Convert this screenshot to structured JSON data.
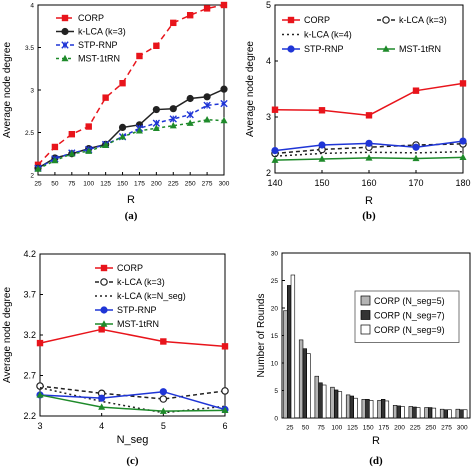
{
  "chart_data": [
    {
      "panel": "(a)",
      "type": "line",
      "xlabel": "R",
      "ylabel": "Average node degree",
      "xlim": [
        25,
        300
      ],
      "ylim": [
        2,
        4
      ],
      "xticks": [
        25,
        50,
        75,
        100,
        125,
        150,
        175,
        200,
        225,
        250,
        275,
        300
      ],
      "yticks": [
        2,
        2.5,
        3,
        3.5,
        4
      ],
      "ytick_labels": [
        "2",
        "2.5",
        "3",
        "3.5",
        "4"
      ],
      "legend": "top-left",
      "grid": false,
      "series": [
        {
          "name": "CORP",
          "color": "#e8141b",
          "dash": "6,4",
          "marker": "square",
          "x": [
            25,
            50,
            75,
            100,
            125,
            150,
            175,
            200,
            225,
            250,
            275,
            300
          ],
          "values": [
            2.12,
            2.33,
            2.48,
            2.57,
            2.91,
            3.08,
            3.4,
            3.52,
            3.79,
            3.88,
            3.96,
            4.0
          ]
        },
        {
          "name": "k-LCA (k=3)",
          "color": "#222222",
          "dash": "",
          "marker": "circle",
          "x": [
            25,
            50,
            75,
            100,
            125,
            150,
            175,
            200,
            225,
            250,
            275,
            300
          ],
          "values": [
            2.08,
            2.2,
            2.25,
            2.31,
            2.36,
            2.56,
            2.59,
            2.77,
            2.78,
            2.9,
            2.92,
            3.01
          ]
        },
        {
          "name": "STP-RNP",
          "color": "#1f35d6",
          "dash": "4,3",
          "marker": "x",
          "x": [
            25,
            50,
            75,
            100,
            125,
            150,
            175,
            200,
            225,
            250,
            275,
            300
          ],
          "values": [
            2.08,
            2.19,
            2.26,
            2.3,
            2.36,
            2.45,
            2.55,
            2.61,
            2.66,
            2.71,
            2.82,
            2.84
          ]
        },
        {
          "name": "MST-1tRN",
          "color": "#1e8a2a",
          "dash": "3,3",
          "marker": "triangle",
          "x": [
            25,
            50,
            75,
            100,
            125,
            150,
            175,
            200,
            225,
            250,
            275,
            300
          ],
          "values": [
            2.07,
            2.17,
            2.25,
            2.28,
            2.35,
            2.45,
            2.52,
            2.55,
            2.58,
            2.61,
            2.65,
            2.64
          ]
        }
      ],
      "caption": "(a)"
    },
    {
      "panel": "(b)",
      "type": "line",
      "xlabel": "R",
      "ylabel": "Average node degree",
      "xlim": [
        140,
        180
      ],
      "ylim": [
        2,
        5
      ],
      "xticks": [
        140,
        150,
        160,
        170,
        180
      ],
      "yticks": [
        2,
        3,
        4,
        5
      ],
      "ytick_labels": [
        "2",
        "3",
        "4",
        "5"
      ],
      "legend": "top",
      "grid": false,
      "series": [
        {
          "name": "CORP",
          "color": "#e8141b",
          "dash": "",
          "marker": "square",
          "x": [
            140,
            150,
            160,
            170,
            180
          ],
          "values": [
            3.13,
            3.12,
            3.03,
            3.47,
            3.6
          ]
        },
        {
          "name": "k-LCA (k=3)",
          "color": "#222222",
          "dash": "4,3",
          "marker": "circle-open",
          "x": [
            140,
            150,
            160,
            170,
            180
          ],
          "values": [
            2.35,
            2.42,
            2.46,
            2.5,
            2.52
          ]
        },
        {
          "name": "k-LCA (k=4)",
          "color": "#222222",
          "dash": "2,3",
          "marker": "none",
          "x": [
            140,
            150,
            160,
            170,
            180
          ],
          "values": [
            2.3,
            2.35,
            2.37,
            2.36,
            2.38
          ]
        },
        {
          "name": "STP-RNP",
          "color": "#1f35d6",
          "dash": "",
          "marker": "circle",
          "x": [
            140,
            150,
            160,
            170,
            180
          ],
          "values": [
            2.4,
            2.5,
            2.53,
            2.46,
            2.57
          ]
        },
        {
          "name": "MST-1tRN",
          "color": "#1e8a2a",
          "dash": "",
          "marker": "triangle",
          "x": [
            140,
            150,
            160,
            170,
            180
          ],
          "values": [
            2.23,
            2.25,
            2.27,
            2.26,
            2.28
          ]
        }
      ],
      "caption": "(b)"
    },
    {
      "panel": "(c)",
      "type": "line",
      "xlabel": "N_seg",
      "ylabel": "Average node degree",
      "xlim": [
        3,
        6
      ],
      "ylim": [
        2.2,
        4.2
      ],
      "xticks": [
        3,
        4,
        5,
        6
      ],
      "yticks": [
        2.2,
        2.7,
        3.2,
        3.7,
        4.2
      ],
      "ytick_labels": [
        "2.2",
        "2.7",
        "3.2",
        "3.7",
        "4.2"
      ],
      "legend": "top",
      "grid": false,
      "series": [
        {
          "name": "CORP",
          "color": "#e8141b",
          "dash": "",
          "marker": "square",
          "x": [
            3,
            4,
            5,
            6
          ],
          "values": [
            3.1,
            3.27,
            3.12,
            3.06
          ]
        },
        {
          "name": "k-LCA (k=3)",
          "color": "#222222",
          "dash": "4,3",
          "marker": "circle-open",
          "x": [
            3,
            4,
            5,
            6
          ],
          "values": [
            2.57,
            2.48,
            2.41,
            2.51
          ]
        },
        {
          "name": "k-LCA (k=N_seg)",
          "color": "#222222",
          "dash": "2,3",
          "marker": "none",
          "x": [
            3,
            4,
            5,
            6
          ],
          "values": [
            2.55,
            2.38,
            2.24,
            2.32
          ]
        },
        {
          "name": "STP-RNP",
          "color": "#1f35d6",
          "dash": "",
          "marker": "circle",
          "x": [
            3,
            4,
            5,
            6
          ],
          "values": [
            2.46,
            2.42,
            2.5,
            2.28
          ]
        },
        {
          "name": "MST-1tRN",
          "color": "#1e8a2a",
          "dash": "",
          "marker": "triangle",
          "x": [
            3,
            4,
            5,
            6
          ],
          "values": [
            2.46,
            2.31,
            2.26,
            2.27
          ]
        }
      ],
      "caption": "(c)"
    },
    {
      "panel": "(d)",
      "type": "bar",
      "xlabel": "R",
      "ylabel": "Number of Rounds",
      "ylim": [
        0,
        30
      ],
      "yticks": [
        0,
        5,
        10,
        15,
        20,
        25,
        30
      ],
      "ytick_labels": [
        "0",
        "5",
        "10",
        "15",
        "20",
        "25",
        "30"
      ],
      "categories": [
        "25",
        "50",
        "75",
        "100",
        "125",
        "150",
        "175",
        "200",
        "225",
        "250",
        "275",
        "300"
      ],
      "legend": "top-right",
      "grid": false,
      "series": [
        {
          "name": "CORP (N_seg=5)",
          "color": "#b4b4b4",
          "values": [
            19.5,
            14.2,
            7.6,
            5.6,
            4.2,
            3.4,
            3.2,
            2.3,
            2.1,
            1.9,
            1.6,
            1.6
          ]
        },
        {
          "name": "CORP (N_seg=7)",
          "color": "#333333",
          "values": [
            24.1,
            12.6,
            6.4,
            5.1,
            4.0,
            3.4,
            3.4,
            2.2,
            2.0,
            1.9,
            1.5,
            1.5
          ]
        },
        {
          "name": "CORP (N_seg=9)",
          "color": "#ffffff",
          "values": [
            26.0,
            11.7,
            6.0,
            4.8,
            3.6,
            3.2,
            3.1,
            2.1,
            1.9,
            1.8,
            1.5,
            1.5
          ]
        }
      ],
      "caption": "(d)"
    }
  ]
}
